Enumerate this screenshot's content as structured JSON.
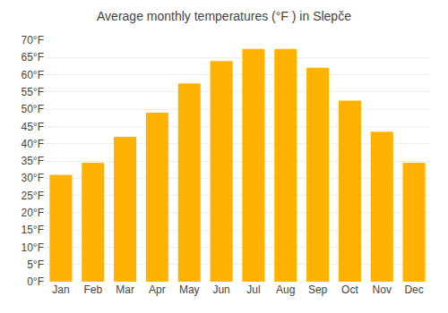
{
  "chart_data": {
    "type": "bar",
    "title": "Average monthly temperatures (°F ) in Slepče",
    "categories": [
      "Jan",
      "Feb",
      "Mar",
      "Apr",
      "May",
      "Jun",
      "Jul",
      "Aug",
      "Sep",
      "Oct",
      "Nov",
      "Dec"
    ],
    "values": [
      31,
      34.5,
      42,
      49,
      57.5,
      64,
      67.5,
      67.5,
      62,
      52.5,
      43.5,
      34.5
    ],
    "color": "#FFB300",
    "ylim": [
      0,
      70
    ],
    "yticks": [
      {
        "value": 0,
        "label": "0°F"
      },
      {
        "value": 5,
        "label": "5°F"
      },
      {
        "value": 10,
        "label": "10°F"
      },
      {
        "value": 15,
        "label": "15°F"
      },
      {
        "value": 20,
        "label": "20°F"
      },
      {
        "value": 25,
        "label": "25°F"
      },
      {
        "value": 30,
        "label": "30°F"
      },
      {
        "value": 35,
        "label": "35°F"
      },
      {
        "value": 40,
        "label": "40°F"
      },
      {
        "value": 45,
        "label": "45°F"
      },
      {
        "value": 50,
        "label": "50°F"
      },
      {
        "value": 55,
        "label": "55°F"
      },
      {
        "value": 60,
        "label": "60°F"
      },
      {
        "value": 65,
        "label": "65°F"
      },
      {
        "value": 70,
        "label": "70°F"
      }
    ],
    "grid": true
  }
}
